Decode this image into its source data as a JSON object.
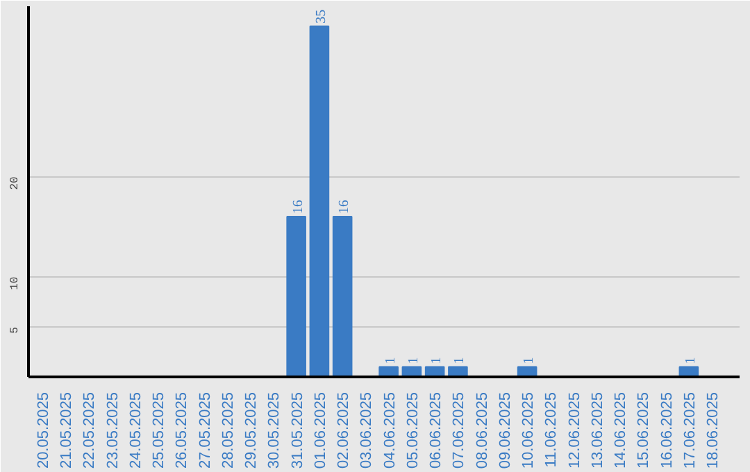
{
  "chart_data": {
    "type": "bar",
    "categories": [
      "20.05.2025",
      "21.05.2025",
      "22.05.2025",
      "23.05.2025",
      "24.05.2025",
      "25.05.2025",
      "26.05.2025",
      "27.05.2025",
      "28.05.2025",
      "29.05.2025",
      "30.05.2025",
      "31.05.2025",
      "01.06.2025",
      "02.06.2025",
      "03.06.2025",
      "04.06.2025",
      "05.06.2025",
      "06.06.2025",
      "07.06.2025",
      "08.06.2025",
      "09.06.2025",
      "10.06.2025",
      "11.06.2025",
      "12.06.2025",
      "13.06.2025",
      "14.06.2025",
      "15.06.2025",
      "16.06.2025",
      "17.06.2025",
      "18.06.2025"
    ],
    "values": [
      0,
      0,
      0,
      0,
      0,
      0,
      0,
      0,
      0,
      0,
      0,
      16,
      35,
      16,
      0,
      1,
      1,
      1,
      1,
      0,
      0,
      1,
      0,
      0,
      0,
      0,
      0,
      0,
      1,
      0
    ],
    "value_labels": [
      null,
      null,
      null,
      null,
      null,
      null,
      null,
      null,
      null,
      null,
      null,
      "16",
      "35",
      "16",
      null,
      "1",
      "1",
      "1",
      "1",
      null,
      null,
      "1",
      null,
      null,
      null,
      null,
      null,
      null,
      "1",
      null
    ],
    "color": "#3a7bc4",
    "ylim": [
      0,
      37
    ],
    "yticks": [
      5,
      10,
      20
    ],
    "grid": "y"
  }
}
